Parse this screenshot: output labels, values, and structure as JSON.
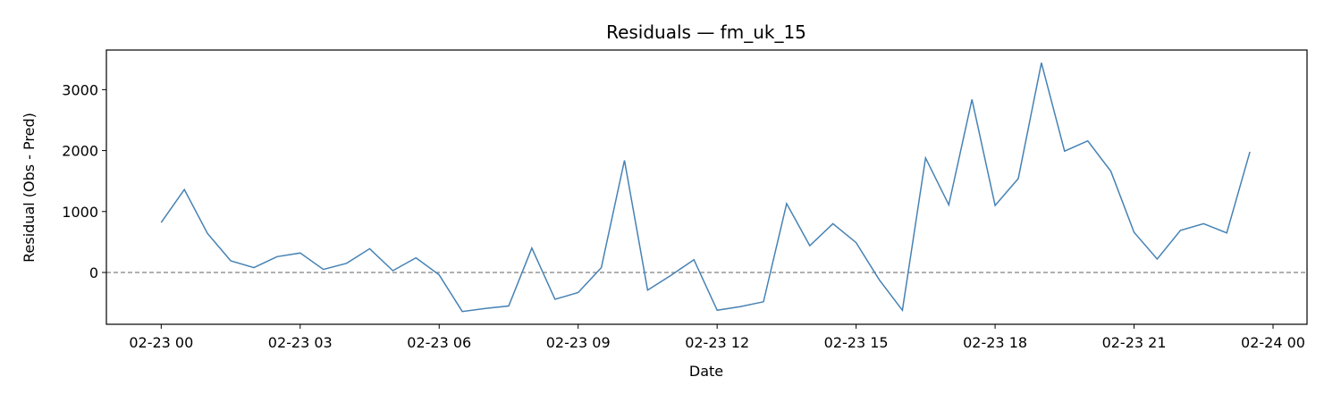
{
  "chart_data": {
    "type": "line",
    "title": "Residuals — fm_uk_15",
    "xlabel": "Date",
    "ylabel": "Residual (Obs - Pred)",
    "x_tick_labels": [
      "02-23 00",
      "02-23 03",
      "02-23 06",
      "02-23 09",
      "02-23 12",
      "02-23 15",
      "02-23 18",
      "02-23 21",
      "02-24 00"
    ],
    "y_ticks": [
      0,
      1000,
      2000,
      3000
    ],
    "xlim": [
      "2025-02-22T22:49",
      "2025-02-24T00:44"
    ],
    "ylim": [
      -850,
      3650
    ],
    "grid": false,
    "series": [
      {
        "color": "#4682b4",
        "x": [
          "2025-02-23T00:00",
          "2025-02-23T00:30",
          "2025-02-23T01:00",
          "2025-02-23T01:30",
          "2025-02-23T02:00",
          "2025-02-23T02:30",
          "2025-02-23T03:00",
          "2025-02-23T03:30",
          "2025-02-23T04:00",
          "2025-02-23T04:30",
          "2025-02-23T05:00",
          "2025-02-23T05:30",
          "2025-02-23T06:00",
          "2025-02-23T06:30",
          "2025-02-23T07:00",
          "2025-02-23T07:30",
          "2025-02-23T08:00",
          "2025-02-23T08:30",
          "2025-02-23T09:00",
          "2025-02-23T09:30",
          "2025-02-23T10:00",
          "2025-02-23T10:30",
          "2025-02-23T11:00",
          "2025-02-23T11:30",
          "2025-02-23T12:00",
          "2025-02-23T12:30",
          "2025-02-23T13:00",
          "2025-02-23T13:30",
          "2025-02-23T14:00",
          "2025-02-23T14:30",
          "2025-02-23T15:00",
          "2025-02-23T15:30",
          "2025-02-23T16:00",
          "2025-02-23T16:30",
          "2025-02-23T17:00",
          "2025-02-23T17:30",
          "2025-02-23T18:00",
          "2025-02-23T18:30",
          "2025-02-23T19:00",
          "2025-02-23T19:30",
          "2025-02-23T20:00",
          "2025-02-23T20:30",
          "2025-02-23T21:00",
          "2025-02-23T21:30",
          "2025-02-23T22:00",
          "2025-02-23T22:30",
          "2025-02-23T23:00",
          "2025-02-23T23:30"
        ],
        "values": [
          820,
          1360,
          640,
          190,
          80,
          260,
          320,
          50,
          150,
          390,
          30,
          240,
          -40,
          -640,
          -590,
          -550,
          400,
          -440,
          -330,
          80,
          1840,
          -290,
          -50,
          210,
          -620,
          -560,
          -480,
          1130,
          440,
          800,
          490,
          -120,
          -620,
          1880,
          1110,
          2840,
          1100,
          1540,
          3440,
          1990,
          2160,
          1660,
          660,
          220,
          690,
          800,
          650,
          1980
        ]
      }
    ],
    "reference_line": {
      "y": 0,
      "style": "dashed",
      "color": "#808080"
    }
  }
}
